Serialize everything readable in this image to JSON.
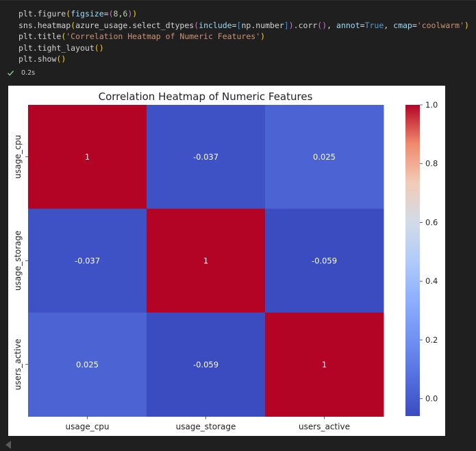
{
  "code": {
    "lines": [
      [
        {
          "t": "plt.figure",
          "c": "#d4d4d4"
        },
        {
          "t": "(",
          "c": "#ffd700"
        },
        {
          "t": "figsize",
          "c": "#9cdcfe"
        },
        {
          "t": "=",
          "c": "#d4d4d4"
        },
        {
          "t": "(",
          "c": "#da70d6"
        },
        {
          "t": "8",
          "c": "#b5cea8"
        },
        {
          "t": ",",
          "c": "#d4d4d4"
        },
        {
          "t": "6",
          "c": "#b5cea8"
        },
        {
          "t": ")",
          "c": "#da70d6"
        },
        {
          "t": ")",
          "c": "#ffd700"
        }
      ],
      [
        {
          "t": "sns.heatmap",
          "c": "#d4d4d4"
        },
        {
          "t": "(",
          "c": "#ffd700"
        },
        {
          "t": "azure_usage.select_dtypes",
          "c": "#d4d4d4"
        },
        {
          "t": "(",
          "c": "#da70d6"
        },
        {
          "t": "include",
          "c": "#9cdcfe"
        },
        {
          "t": "=",
          "c": "#d4d4d4"
        },
        {
          "t": "[",
          "c": "#179fff"
        },
        {
          "t": "np.number",
          "c": "#d4d4d4"
        },
        {
          "t": "]",
          "c": "#179fff"
        },
        {
          "t": ")",
          "c": "#da70d6"
        },
        {
          "t": ".corr",
          "c": "#d4d4d4"
        },
        {
          "t": "()",
          "c": "#da70d6"
        },
        {
          "t": ", ",
          "c": "#d4d4d4"
        },
        {
          "t": "annot",
          "c": "#9cdcfe"
        },
        {
          "t": "=",
          "c": "#d4d4d4"
        },
        {
          "t": "True",
          "c": "#569cd6"
        },
        {
          "t": ", ",
          "c": "#d4d4d4"
        },
        {
          "t": "cmap",
          "c": "#9cdcfe"
        },
        {
          "t": "=",
          "c": "#d4d4d4"
        },
        {
          "t": "'coolwarm'",
          "c": "#ce9178"
        },
        {
          "t": ")",
          "c": "#ffd700"
        }
      ],
      [
        {
          "t": "plt.title",
          "c": "#d4d4d4"
        },
        {
          "t": "(",
          "c": "#ffd700"
        },
        {
          "t": "'Correlation Heatmap of Numeric Features'",
          "c": "#ce9178"
        },
        {
          "t": ")",
          "c": "#ffd700"
        }
      ],
      [
        {
          "t": "plt.tight_layout",
          "c": "#d4d4d4"
        },
        {
          "t": "()",
          "c": "#ffd700"
        }
      ],
      [
        {
          "t": "plt.show",
          "c": "#d4d4d4"
        },
        {
          "t": "()",
          "c": "#ffd700"
        }
      ]
    ]
  },
  "status": {
    "exec_time": "0.2s",
    "check_color": "#89d185",
    "icon": "check-icon"
  },
  "chart_data": {
    "type": "heatmap",
    "title": "Correlation Heatmap of Numeric Features",
    "xlabel": "",
    "ylabel": "",
    "x_categories": [
      "usage_cpu",
      "usage_storage",
      "users_active"
    ],
    "y_categories": [
      "usage_cpu",
      "usage_storage",
      "users_active"
    ],
    "values": [
      [
        1,
        -0.037,
        0.025
      ],
      [
        -0.037,
        1,
        -0.059
      ],
      [
        0.025,
        -0.059,
        1
      ]
    ],
    "annotations": [
      [
        "1",
        "-0.037",
        "0.025"
      ],
      [
        "-0.037",
        "1",
        "-0.059"
      ],
      [
        "0.025",
        "-0.059",
        "1"
      ]
    ],
    "colormap": "coolwarm",
    "colorbar_range": [
      -0.059,
      1
    ],
    "colorbar_ticks": [
      "0.0",
      "0.2",
      "0.4",
      "0.6",
      "0.8",
      "1.0"
    ],
    "colorbar_tick_values": [
      0.0,
      0.2,
      0.4,
      0.6,
      0.8,
      1.0
    ],
    "grid": false,
    "colorbar_position": "right"
  }
}
